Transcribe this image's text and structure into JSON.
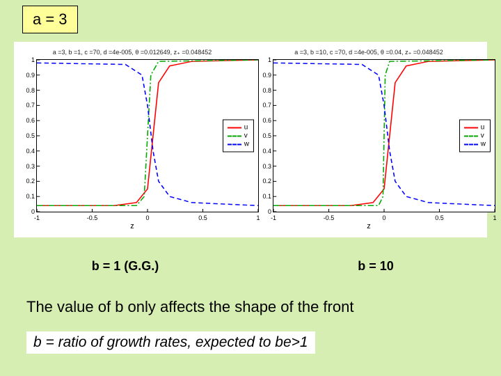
{
  "colors": {
    "slide_bg": "#d6eeb2",
    "header_bg": "#ffff99",
    "charts_bg": "#ffffff",
    "textbox_bg": "#ffffff"
  },
  "header": {
    "text": "a = 3"
  },
  "charts": [
    {
      "title": "a =3, b =1, c =70, d =4e-005, θ =0.012649, z₊ =0.048452",
      "type": "line",
      "xlim": [
        -1,
        1
      ],
      "ylim": [
        0,
        1
      ],
      "xticks": [
        -1,
        -0.5,
        0,
        0.5,
        1
      ],
      "yticks": [
        0,
        0.1,
        0.2,
        0.3,
        0.4,
        0.5,
        0.6,
        0.7,
        0.8,
        0.9,
        1
      ],
      "xlabel": "z",
      "series": [
        {
          "name": "u",
          "color": "#ff0000",
          "style": "solid",
          "width": 1.5,
          "points": [
            [
              -1,
              0.04
            ],
            [
              -0.3,
              0.04
            ],
            [
              -0.1,
              0.06
            ],
            [
              0,
              0.15
            ],
            [
              0.05,
              0.5
            ],
            [
              0.1,
              0.85
            ],
            [
              0.2,
              0.96
            ],
            [
              0.4,
              0.99
            ],
            [
              1,
              1.0
            ]
          ]
        },
        {
          "name": "v",
          "color": "#00aa00",
          "style": "dashdot",
          "width": 1.5,
          "points": [
            [
              -1,
              0.04
            ],
            [
              -0.1,
              0.04
            ],
            [
              -0.03,
              0.1
            ],
            [
              0,
              0.5
            ],
            [
              0.03,
              0.9
            ],
            [
              0.1,
              0.99
            ],
            [
              1,
              1.0
            ]
          ]
        },
        {
          "name": "w",
          "color": "#0000ff",
          "style": "dashed",
          "width": 1.5,
          "points": [
            [
              -1,
              0.98
            ],
            [
              -0.2,
              0.97
            ],
            [
              -0.05,
              0.9
            ],
            [
              0,
              0.7
            ],
            [
              0.05,
              0.4
            ],
            [
              0.1,
              0.2
            ],
            [
              0.2,
              0.1
            ],
            [
              0.4,
              0.06
            ],
            [
              1,
              0.04
            ]
          ]
        }
      ]
    },
    {
      "title": "a =3, b =10, c =70, d =4e-005, θ =0.04, z₊ =0.048452",
      "type": "line",
      "xlim": [
        -1,
        1
      ],
      "ylim": [
        0,
        1
      ],
      "xticks": [
        -1,
        -0.5,
        0,
        0.5,
        1
      ],
      "yticks": [
        0,
        0.1,
        0.2,
        0.3,
        0.4,
        0.5,
        0.6,
        0.7,
        0.8,
        0.9,
        1
      ],
      "xlabel": "z",
      "series": [
        {
          "name": "u",
          "color": "#ff0000",
          "style": "solid",
          "width": 1.5,
          "points": [
            [
              -1,
              0.04
            ],
            [
              -0.3,
              0.04
            ],
            [
              -0.1,
              0.06
            ],
            [
              0,
              0.15
            ],
            [
              0.05,
              0.5
            ],
            [
              0.1,
              0.85
            ],
            [
              0.2,
              0.96
            ],
            [
              0.4,
              0.99
            ],
            [
              1,
              1.0
            ]
          ]
        },
        {
          "name": "v",
          "color": "#00aa00",
          "style": "dashdot",
          "width": 1.5,
          "points": [
            [
              -1,
              0.04
            ],
            [
              -0.05,
              0.04
            ],
            [
              -0.01,
              0.1
            ],
            [
              0,
              0.5
            ],
            [
              0.01,
              0.9
            ],
            [
              0.05,
              0.99
            ],
            [
              1,
              1.0
            ]
          ]
        },
        {
          "name": "w",
          "color": "#0000ff",
          "style": "dashed",
          "width": 1.5,
          "points": [
            [
              -1,
              0.98
            ],
            [
              -0.2,
              0.97
            ],
            [
              -0.05,
              0.9
            ],
            [
              0,
              0.7
            ],
            [
              0.05,
              0.4
            ],
            [
              0.1,
              0.2
            ],
            [
              0.2,
              0.1
            ],
            [
              0.4,
              0.06
            ],
            [
              1,
              0.04
            ]
          ]
        }
      ]
    }
  ],
  "captions": [
    "b = 1 (G.G.)",
    "b = 10"
  ],
  "body_text_1": "The value of b only affects the shape of the front",
  "body_text_2": "b = ratio of growth rates, expected to be>1"
}
